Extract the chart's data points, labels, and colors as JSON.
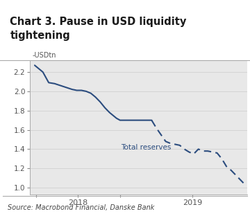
{
  "title": "Chart 3. Pause in USD liquidity\ntightening",
  "ylabel": "-USDtn",
  "source": "Source: Macrobond Financial, Danske Bank",
  "line_color": "#2b4c7e",
  "background_color": "#ffffff",
  "title_bg_color": "#e8e8e8",
  "plot_bg_color": "#e8e8e8",
  "footer_bg_color": "#e8e8e8",
  "ylim": [
    0.93,
    2.32
  ],
  "yticks": [
    1.0,
    1.2,
    1.4,
    1.6,
    1.8,
    2.0,
    2.2
  ],
  "annotation": "Total reserves",
  "solid_x": [
    0.0,
    0.03,
    0.07,
    0.12,
    0.17,
    0.22,
    0.27,
    0.32,
    0.36,
    0.4,
    0.44,
    0.48,
    0.52,
    0.56,
    0.6,
    0.64,
    0.67,
    0.7,
    0.73,
    0.76,
    0.79,
    0.82,
    0.85,
    0.88,
    0.91,
    0.94,
    0.97,
    1.0
  ],
  "solid_y": [
    2.27,
    2.24,
    2.2,
    2.09,
    2.08,
    2.06,
    2.04,
    2.02,
    2.01,
    2.01,
    2.0,
    1.98,
    1.94,
    1.89,
    1.83,
    1.78,
    1.75,
    1.72,
    1.7,
    1.7,
    1.7,
    1.7,
    1.7,
    1.7,
    1.7,
    1.7,
    1.7,
    1.7
  ],
  "dashed_x": [
    1.0,
    1.04,
    1.08,
    1.12,
    1.16,
    1.2,
    1.24,
    1.28,
    1.32,
    1.36,
    1.4,
    1.44,
    1.48,
    1.52,
    1.56,
    1.6,
    1.64,
    1.68,
    1.72,
    1.76,
    1.8
  ],
  "dashed_y": [
    1.7,
    1.62,
    1.55,
    1.48,
    1.46,
    1.45,
    1.44,
    1.4,
    1.37,
    1.35,
    1.4,
    1.38,
    1.38,
    1.37,
    1.36,
    1.3,
    1.22,
    1.18,
    1.13,
    1.08,
    1.03
  ],
  "xtick_pos": [
    0.07,
    0.55,
    1.28
  ],
  "xtick_labels": [
    "",
    "2018",
    "",
    "2019"
  ],
  "x2018_pos": 0.37,
  "x2019_pos": 1.35,
  "xlim": [
    -0.04,
    1.82
  ]
}
